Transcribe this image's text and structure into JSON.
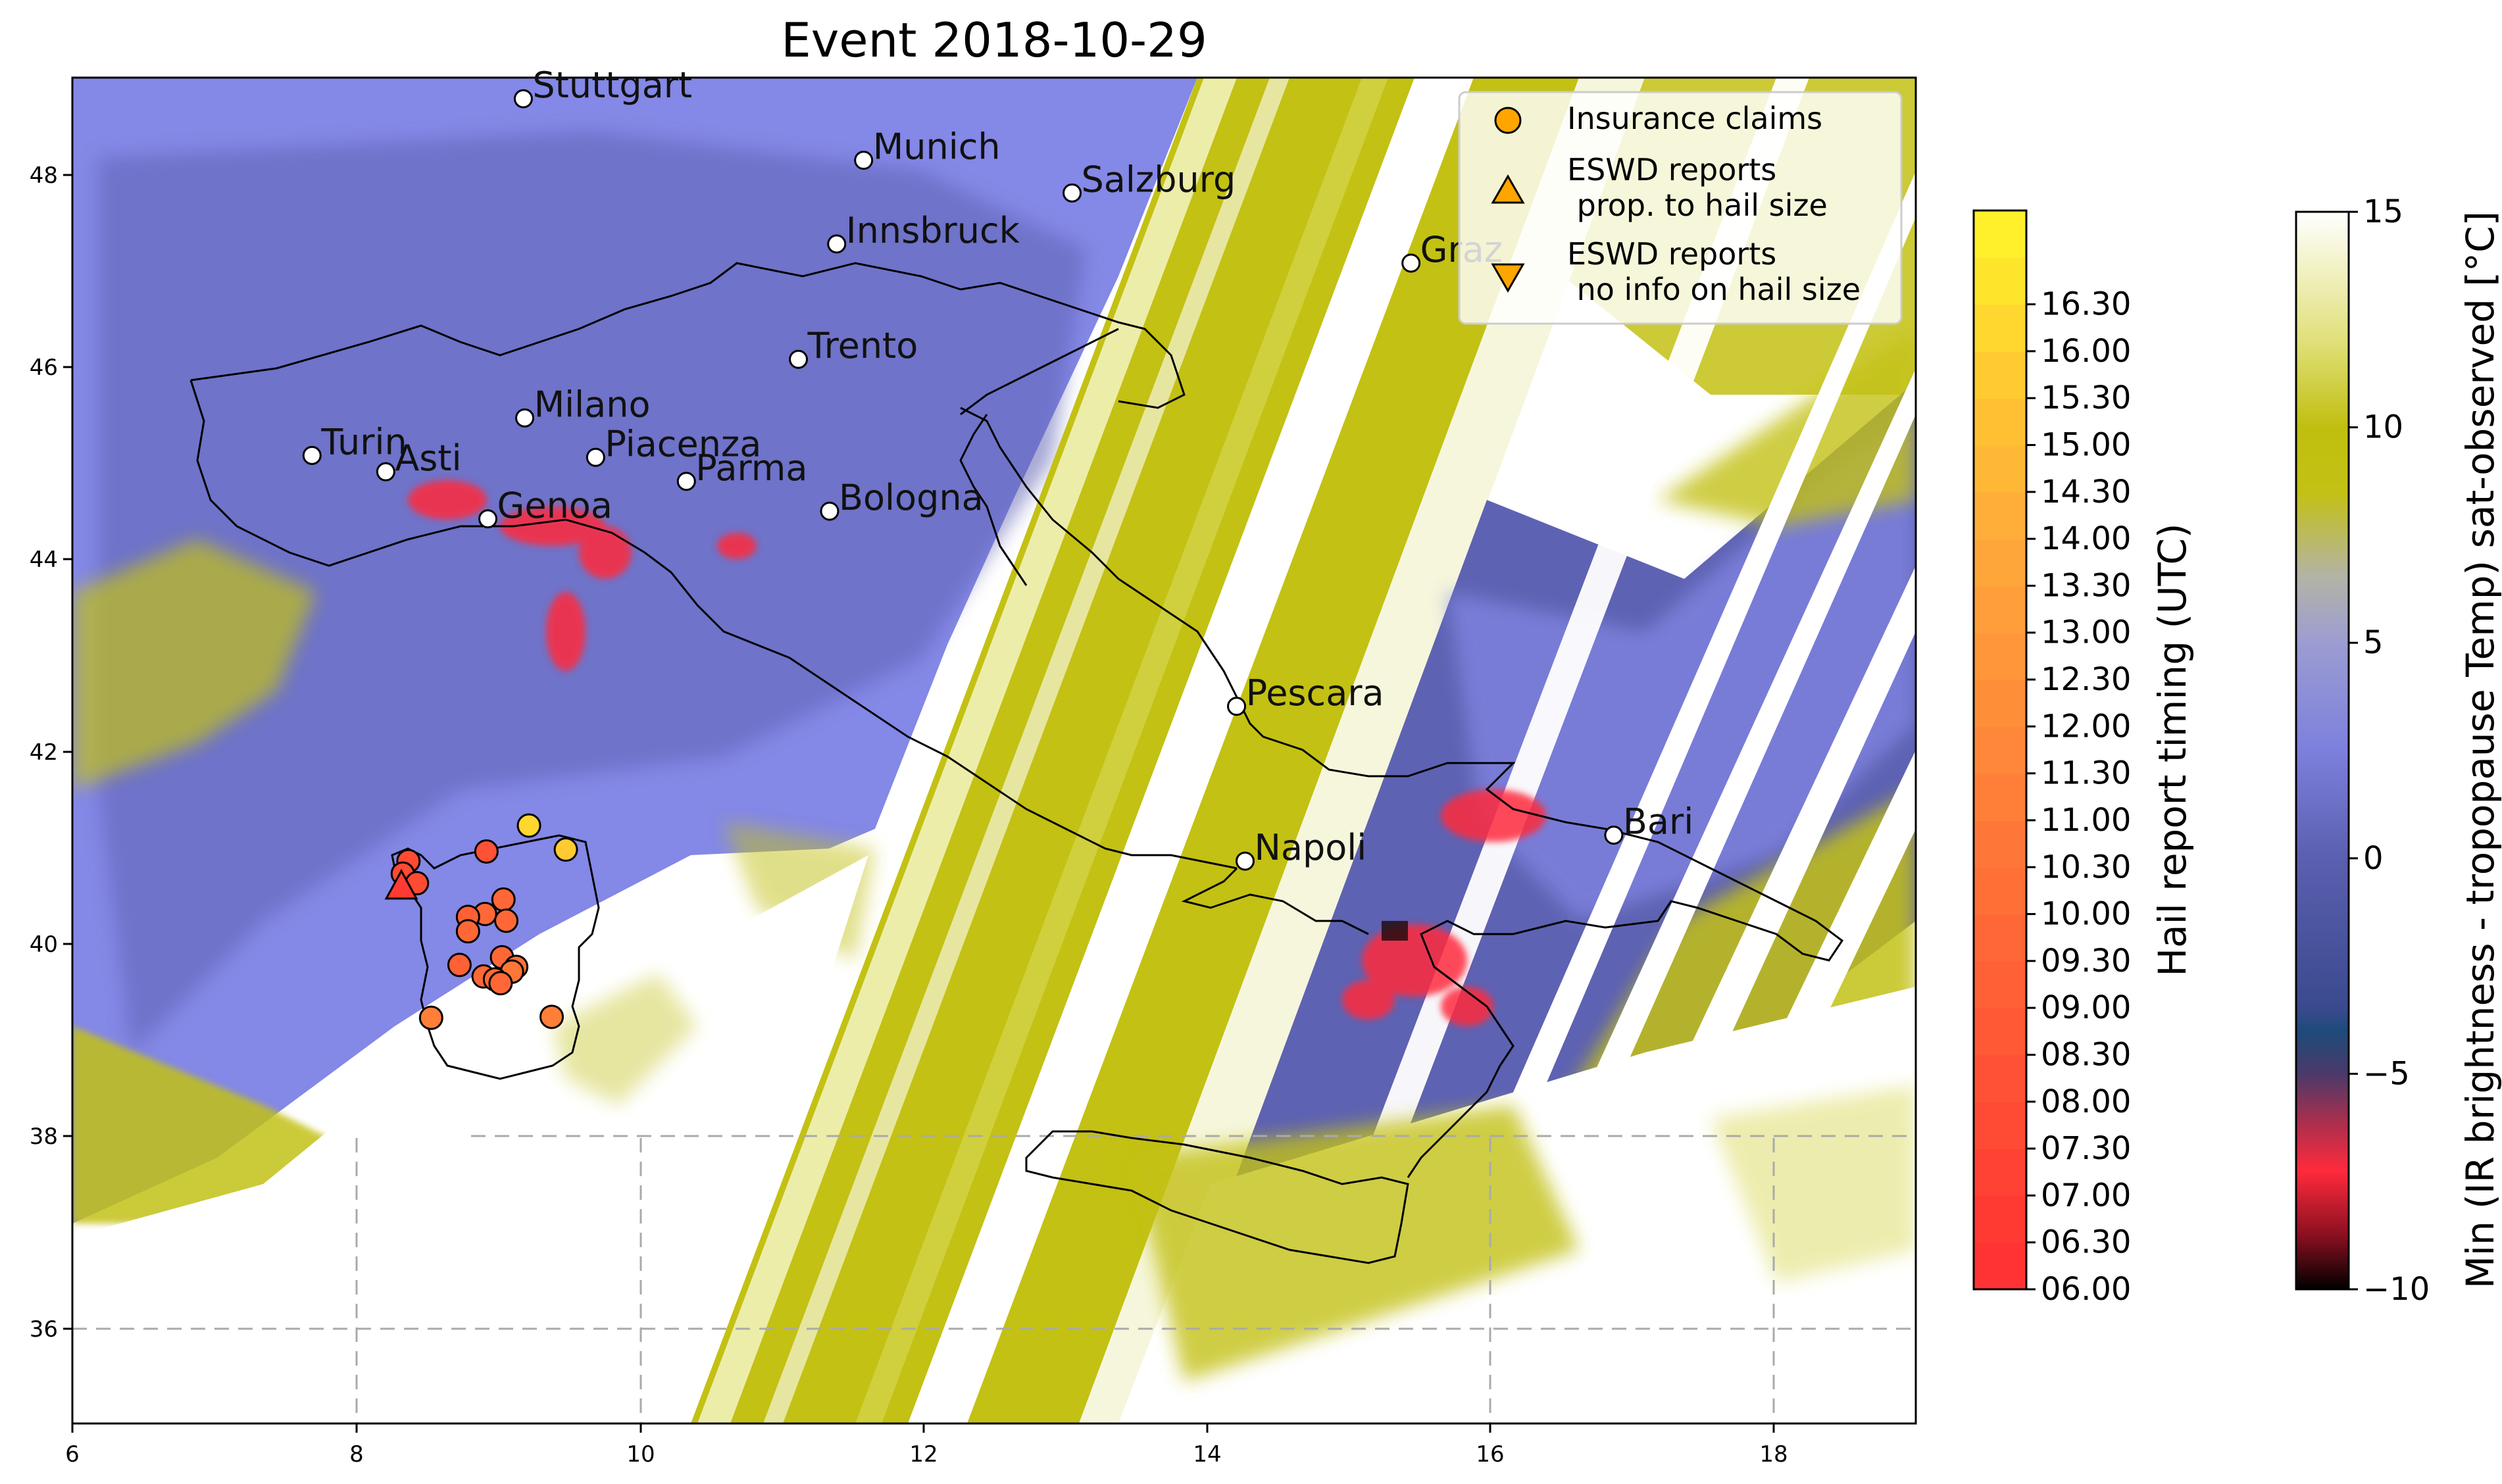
{
  "title": "Event 2018-10-29",
  "map": {
    "lon_range": [
      6,
      19
    ],
    "lat_range": [
      35,
      49
    ],
    "x_ticks": [
      "6",
      "8",
      "10",
      "12",
      "14",
      "16",
      "18"
    ],
    "y_ticks": [
      "36",
      "38",
      "40",
      "42",
      "44",
      "46",
      "48"
    ],
    "grid": "dashed lat/lon lines"
  },
  "cities": [
    {
      "name": "Stuttgart",
      "lon": 9.18,
      "lat": 48.78
    },
    {
      "name": "Munich",
      "lon": 11.58,
      "lat": 48.14
    },
    {
      "name": "Salzburg",
      "lon": 13.05,
      "lat": 47.8
    },
    {
      "name": "Innsbruck",
      "lon": 11.39,
      "lat": 47.27
    },
    {
      "name": "Graz",
      "lon": 15.44,
      "lat": 47.07
    },
    {
      "name": "Trento",
      "lon": 11.12,
      "lat": 46.07
    },
    {
      "name": "Milano",
      "lon": 9.19,
      "lat": 45.46
    },
    {
      "name": "Turin",
      "lon": 7.69,
      "lat": 45.07
    },
    {
      "name": "Asti",
      "lon": 8.21,
      "lat": 44.9
    },
    {
      "name": "Piacenza",
      "lon": 9.69,
      "lat": 45.05
    },
    {
      "name": "Parma",
      "lon": 10.33,
      "lat": 44.8
    },
    {
      "name": "Genoa",
      "lon": 8.93,
      "lat": 44.41
    },
    {
      "name": "Bologna",
      "lon": 11.34,
      "lat": 44.49
    },
    {
      "name": "Pescara",
      "lon": 14.21,
      "lat": 42.46
    },
    {
      "name": "Bari",
      "lon": 16.87,
      "lat": 41.12
    },
    {
      "name": "Napoli",
      "lon": 14.27,
      "lat": 40.85
    }
  ],
  "legend": {
    "items": [
      {
        "marker": "circle",
        "label": "Insurance claims"
      },
      {
        "marker": "triangle-up",
        "label": "ESWD reports\n prop. to hail size"
      },
      {
        "marker": "triangle-down",
        "label": "ESWD reports\n no info on hail size"
      }
    ],
    "placement": "top-right",
    "marker_color": "#ffa500"
  },
  "hail_reports": {
    "insurance_claims": [
      {
        "lon": 9.22,
        "lat": 41.22,
        "time": "16.00"
      },
      {
        "lon": 9.48,
        "lat": 40.97,
        "time": "15.30"
      },
      {
        "lon": 8.92,
        "lat": 40.95,
        "time": "08.00"
      },
      {
        "lon": 8.37,
        "lat": 40.85,
        "time": "07.30"
      },
      {
        "lon": 8.33,
        "lat": 40.72,
        "time": "07.30"
      },
      {
        "lon": 8.43,
        "lat": 40.62,
        "time": "07.30"
      },
      {
        "lon": 9.04,
        "lat": 40.45,
        "time": "09.30"
      },
      {
        "lon": 8.91,
        "lat": 40.3,
        "time": "09.30"
      },
      {
        "lon": 8.79,
        "lat": 40.27,
        "time": "09.00"
      },
      {
        "lon": 9.06,
        "lat": 40.23,
        "time": "09.30"
      },
      {
        "lon": 8.79,
        "lat": 40.12,
        "time": "09.30"
      },
      {
        "lon": 9.03,
        "lat": 39.85,
        "time": "09.30"
      },
      {
        "lon": 8.73,
        "lat": 39.77,
        "time": "09.00"
      },
      {
        "lon": 9.13,
        "lat": 39.75,
        "time": "10.00"
      },
      {
        "lon": 9.1,
        "lat": 39.7,
        "time": "10.30"
      },
      {
        "lon": 8.9,
        "lat": 39.65,
        "time": "09.30"
      },
      {
        "lon": 8.98,
        "lat": 39.62,
        "time": "09.30"
      },
      {
        "lon": 9.02,
        "lat": 39.58,
        "time": "09.30"
      },
      {
        "lon": 8.53,
        "lat": 39.22,
        "time": "11.00"
      },
      {
        "lon": 9.38,
        "lat": 39.23,
        "time": "11.00"
      }
    ],
    "eswd_hail_size": [
      {
        "lon": 8.32,
        "lat": 40.57,
        "time": "06.30"
      }
    ],
    "eswd_no_size": []
  },
  "colorbar_timing": {
    "label": "Hail report timing (UTC)",
    "ticks": [
      "06.00",
      "06.30",
      "07.00",
      "07.30",
      "08.00",
      "08.30",
      "09.00",
      "09.30",
      "10.00",
      "10.30",
      "11.00",
      "11.30",
      "12.00",
      "12.30",
      "13.00",
      "13.30",
      "14.00",
      "14.30",
      "15.00",
      "15.30",
      "16.00",
      "16.30"
    ],
    "colors": [
      "#ff3333",
      "#ff3a33",
      "#ff4233",
      "#ff4a34",
      "#ff5135",
      "#ff5935",
      "#ff6036",
      "#ff6836",
      "#ff7037",
      "#ff7738",
      "#ff7f38",
      "#ff8739",
      "#ff8e39",
      "#ff963a",
      "#ff9e3a",
      "#ffa63a",
      "#ffae39",
      "#ffb736",
      "#ffc133",
      "#ffcb31",
      "#ffd72e",
      "#ffe42c",
      "#fff02b"
    ]
  },
  "colorbar_temp": {
    "label": "Min (IR brightness - tropopause Temp) sat-observed [°C]",
    "ticks": [
      "−10",
      "−5",
      "0",
      "5",
      "10",
      "15"
    ],
    "range": [
      -10,
      15
    ]
  },
  "colors": {
    "purple_field": "#8488e6",
    "dark_purple": "#5a5fae",
    "olive": "#c3c113",
    "white": "#ffffff",
    "red_cores": "#ff2a3c",
    "coast": "#000000"
  }
}
